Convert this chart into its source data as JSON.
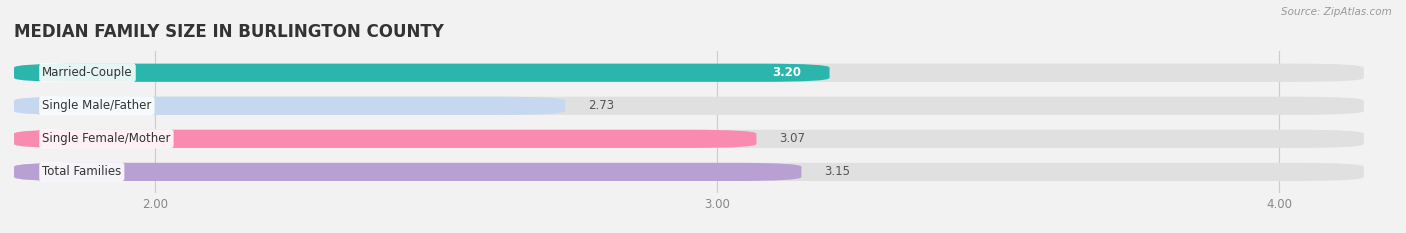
{
  "title": "MEDIAN FAMILY SIZE IN BURLINGTON COUNTY",
  "source": "Source: ZipAtlas.com",
  "categories": [
    "Married-Couple",
    "Single Male/Father",
    "Single Female/Mother",
    "Total Families"
  ],
  "values": [
    3.2,
    2.73,
    3.07,
    3.15
  ],
  "bar_colors": [
    "#2ab5ad",
    "#c5d8f0",
    "#f98bb0",
    "#b89fd4"
  ],
  "background_color": "#f2f2f2",
  "bar_bg_color": "#e0e0e0",
  "xlim_left": 1.75,
  "xlim_right": 4.15,
  "xticks": [
    2.0,
    3.0,
    4.0
  ],
  "xtick_labels": [
    "2.00",
    "3.00",
    "4.00"
  ],
  "label_fontsize": 8.5,
  "value_fontsize": 8.5,
  "title_fontsize": 12,
  "value_inside_bar": [
    true,
    false,
    false,
    false
  ],
  "value_inside_color": [
    "white",
    "#555555",
    "#555555",
    "#555555"
  ]
}
